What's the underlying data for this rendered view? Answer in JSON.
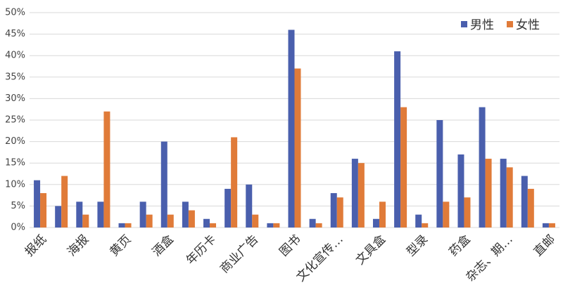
{
  "chart_data": {
    "type": "bar",
    "categories": [
      "报纸",
      null,
      "海报",
      null,
      "黄页",
      null,
      "酒盒",
      null,
      "年历卡",
      null,
      "商业广告",
      null,
      "图书",
      null,
      "文化宣传…",
      null,
      "文具盒",
      null,
      "型录",
      null,
      "药盒",
      null,
      "杂志、期…",
      null,
      "直邮"
    ],
    "series": [
      {
        "name": "男性",
        "color": "#4a5fad",
        "values": [
          11,
          5,
          6,
          6,
          1,
          6,
          20,
          6,
          2,
          9,
          10,
          1,
          46,
          2,
          8,
          16,
          2,
          41,
          3,
          25,
          17,
          28,
          16,
          12,
          1
        ]
      },
      {
        "name": "女性",
        "color": "#e07b39",
        "values": [
          8,
          12,
          3,
          27,
          1,
          3,
          3,
          4,
          1,
          21,
          3,
          1,
          37,
          1,
          7,
          15,
          6,
          28,
          1,
          6,
          7,
          16,
          14,
          9,
          1
        ]
      }
    ],
    "ylim": [
      0,
      50
    ],
    "yticks": [
      {
        "value": 0,
        "label": "0%"
      },
      {
        "value": 5,
        "label": "5%"
      },
      {
        "value": 10,
        "label": "10%"
      },
      {
        "value": 15,
        "label": "15%"
      },
      {
        "value": 20,
        "label": "20%"
      },
      {
        "value": 25,
        "label": "25%"
      },
      {
        "value": 30,
        "label": "30%"
      },
      {
        "value": 35,
        "label": "35%"
      },
      {
        "value": 40,
        "label": "40%"
      },
      {
        "value": 45,
        "label": "45%"
      },
      {
        "value": 50,
        "label": "50%"
      }
    ],
    "grid": true,
    "legend": "top-right"
  }
}
